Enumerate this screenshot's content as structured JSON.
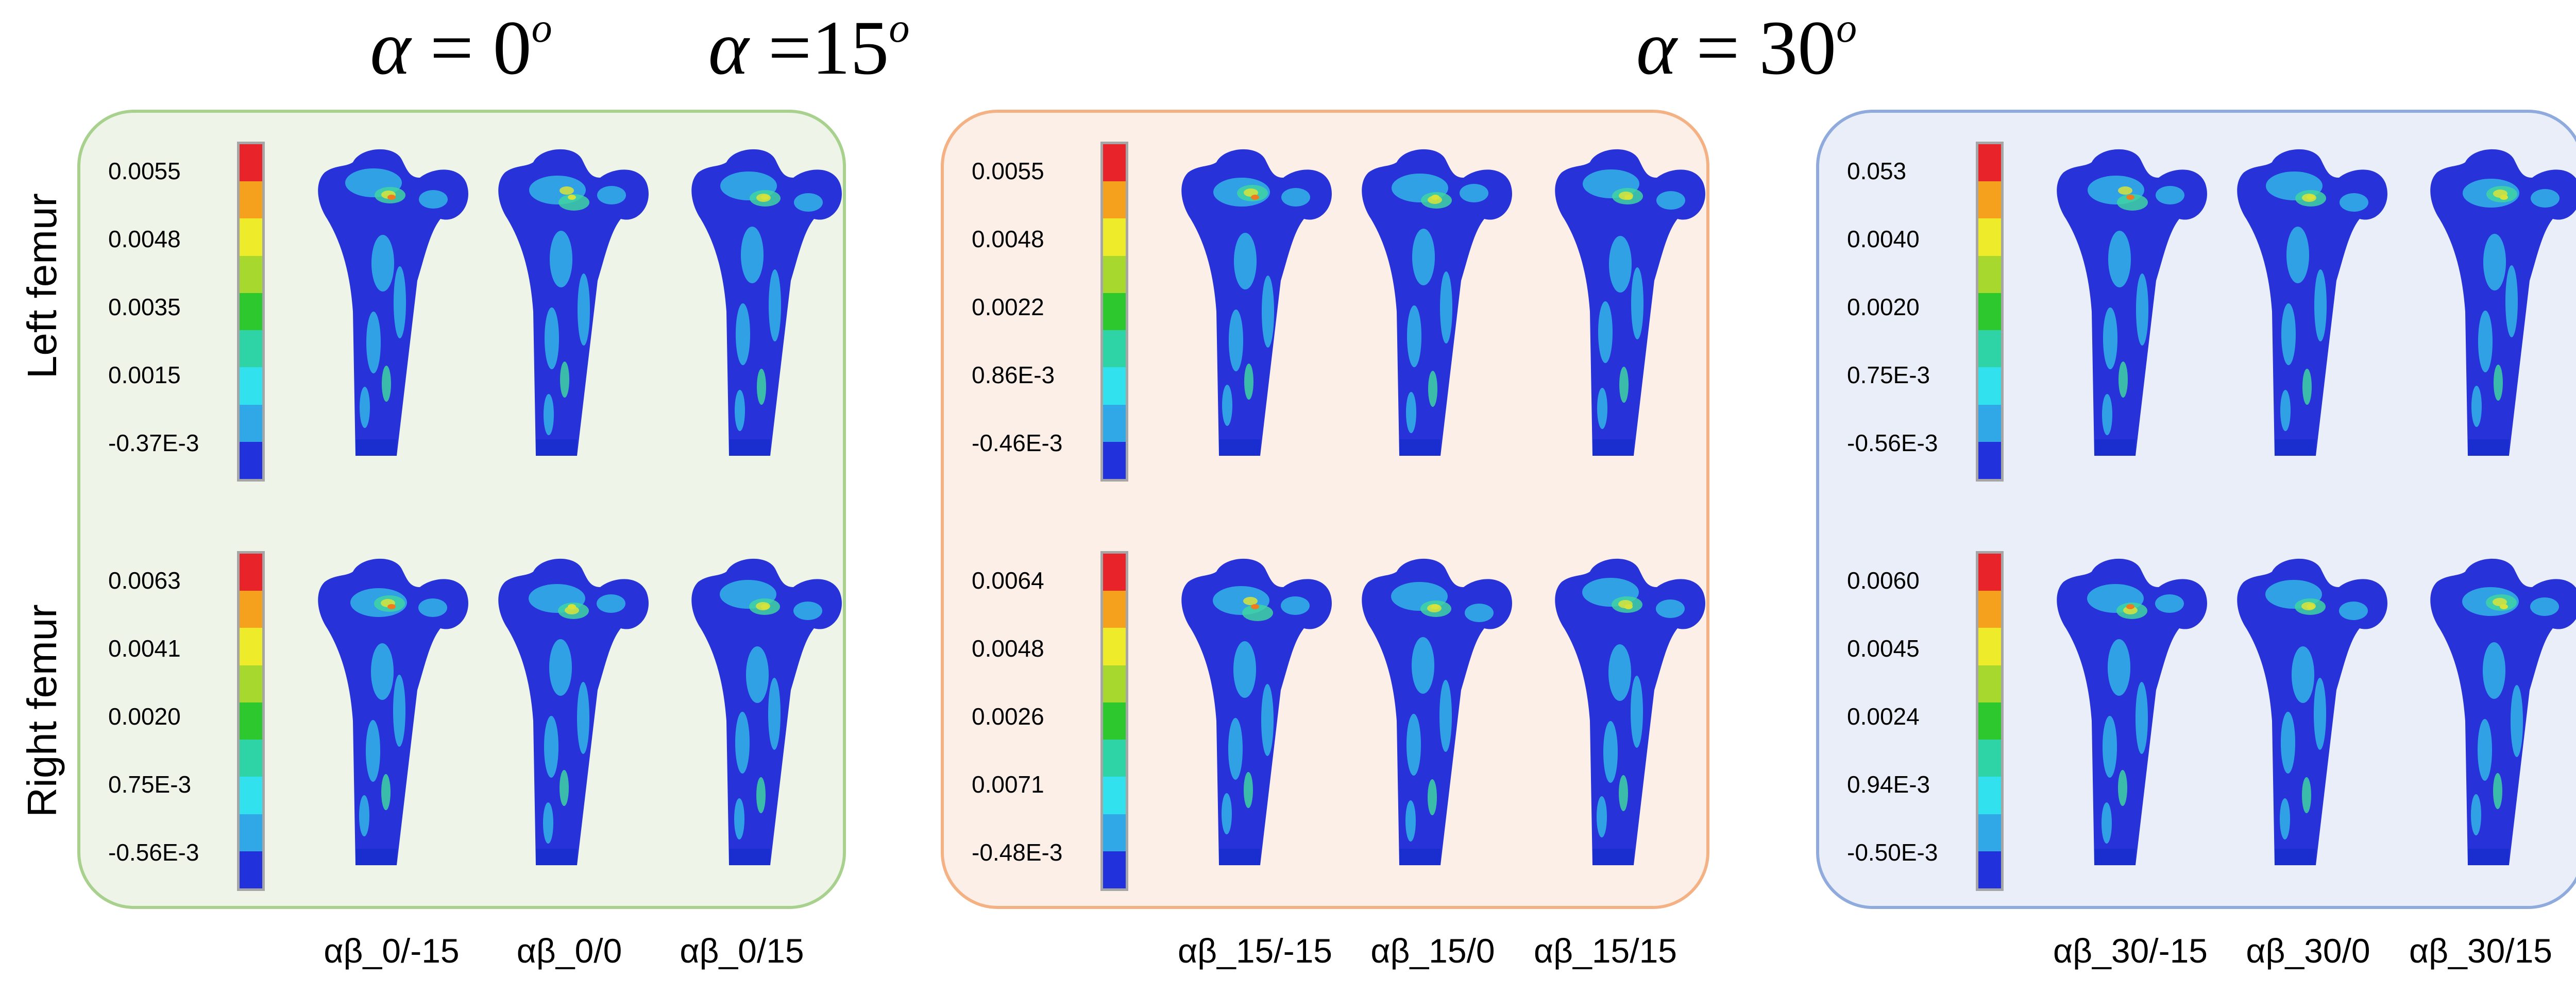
{
  "row_labels": {
    "top": "Left femur",
    "bottom": "Right femur"
  },
  "legend_colors": [
    "#e8232a",
    "#f5a11d",
    "#eeeb2a",
    "#a6d82e",
    "#2dc82d",
    "#2ed4a6",
    "#32e1ee",
    "#30a7e6",
    "#2132dc"
  ],
  "femur_colors": {
    "base": "#2733d8",
    "light": "#34b5e8",
    "mid": "#3fd3a2",
    "high": "#d8e33a",
    "hot": "#f07a1e",
    "peak": "#e5252a",
    "tip": "#1a2ed0"
  },
  "panels": [
    {
      "title_symbol": "α",
      "title_eq": " = 0",
      "title_sup": "o",
      "border_color": "#a9d18e",
      "fill_color": "#eef4e8",
      "left_scale": [
        "0.0055",
        "0.0048",
        "0.0035",
        "0.0015",
        "-0.37E-3"
      ],
      "right_scale": [
        "0.0063",
        "0.0041",
        "0.0020",
        "0.75E-3",
        "-0.56E-3"
      ],
      "cases": [
        "αβ_0/-15",
        "αβ_0/0",
        "αβ_0/15"
      ]
    },
    {
      "title_symbol": "α",
      "title_eq": " =15",
      "title_sup": "o",
      "border_color": "#f4b183",
      "fill_color": "#fcefe8",
      "left_scale": [
        "0.0055",
        "0.0048",
        "0.0022",
        "0.86E-3",
        "-0.46E-3"
      ],
      "right_scale": [
        "0.0064",
        "0.0048",
        "0.0026",
        "0.0071",
        "-0.48E-3"
      ],
      "cases": [
        "αβ_15/-15",
        "αβ_15/0",
        "αβ_15/15"
      ]
    },
    {
      "title_symbol": "α",
      "title_eq": " = 30",
      "title_sup": "o",
      "border_color": "#8faadc",
      "fill_color": "#eaeef8",
      "left_scale": [
        "0.053",
        "0.0040",
        "0.0020",
        "0.75E-3",
        "-0.56E-3"
      ],
      "right_scale": [
        "0.0060",
        "0.0045",
        "0.0024",
        "0.94E-3",
        "-0.50E-3"
      ],
      "cases": [
        "αβ_30/-15",
        "αβ_30/0",
        "αβ_30/15"
      ]
    }
  ]
}
